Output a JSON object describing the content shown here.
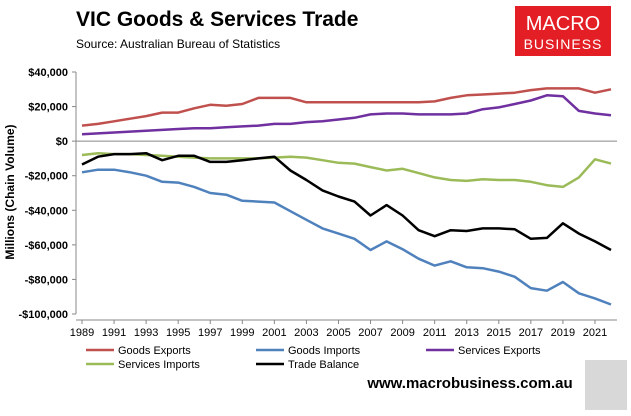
{
  "chart_data": {
    "type": "line",
    "title": "VIC Goods & Services Trade",
    "subtitle": "Source:  Australian Bureau of Statistics",
    "ylabel": "Millions (Chain Volume)",
    "logo": [
      "MACRO",
      "BUSINESS"
    ],
    "footer": "www.macrobusiness.com.au",
    "x": [
      1989,
      1990,
      1991,
      1992,
      1993,
      1994,
      1995,
      1996,
      1997,
      1998,
      1999,
      2000,
      2001,
      2002,
      2003,
      2004,
      2005,
      2006,
      2007,
      2008,
      2009,
      2010,
      2011,
      2012,
      2013,
      2014,
      2015,
      2016,
      2017,
      2018,
      2019,
      2020,
      2021,
      2022
    ],
    "xlim": [
      1989,
      2022
    ],
    "xticks": [
      1989,
      1991,
      1993,
      1995,
      1997,
      1999,
      2001,
      2003,
      2005,
      2007,
      2009,
      2011,
      2013,
      2015,
      2017,
      2019,
      2021
    ],
    "ylim": [
      -100000,
      40000
    ],
    "yticks": [
      {
        "value": -100000,
        "label": "-$100,000"
      },
      {
        "value": -80000,
        "label": "-$80,000"
      },
      {
        "value": -60000,
        "label": "-$60,000"
      },
      {
        "value": -40000,
        "label": "-$40,000"
      },
      {
        "value": -20000,
        "label": "-$20,000"
      },
      {
        "value": 0,
        "label": "$0"
      },
      {
        "value": 20000,
        "label": "$20,000"
      },
      {
        "value": 40000,
        "label": "$40,000"
      }
    ],
    "series": [
      {
        "name": "Goods Exports",
        "color": "#c0504d",
        "values": [
          9000,
          10000,
          11500,
          13000,
          14500,
          16500,
          16500,
          19000,
          21000,
          20500,
          21500,
          25000,
          25000,
          25000,
          22500,
          22500,
          22500,
          22500,
          22500,
          22500,
          22500,
          22500,
          23000,
          25000,
          26500,
          27000,
          27500,
          28000,
          29500,
          30500,
          30500,
          30500,
          28000,
          30000
        ]
      },
      {
        "name": "Goods Imports",
        "color": "#4f81bd",
        "values": [
          -18000,
          -16500,
          -16500,
          -18000,
          -20000,
          -23500,
          -24000,
          -26500,
          -30000,
          -31000,
          -34500,
          -35000,
          -35500,
          -40500,
          -45500,
          -50500,
          -53500,
          -56500,
          -63000,
          -58000,
          -62500,
          -68000,
          -72000,
          -69500,
          -73000,
          -73500,
          -75500,
          -78500,
          -85000,
          -86500,
          -81500,
          -88000,
          -91000,
          -94500
        ]
      },
      {
        "name": "Services Exports",
        "color": "#7030a0",
        "values": [
          4000,
          4500,
          5000,
          5500,
          6000,
          6500,
          7000,
          7500,
          7500,
          8000,
          8500,
          9000,
          10000,
          10000,
          11000,
          11500,
          12500,
          13500,
          15500,
          16000,
          16000,
          15500,
          15500,
          15500,
          16000,
          18500,
          19500,
          21500,
          23500,
          26500,
          26000,
          17500,
          16000,
          15000
        ]
      },
      {
        "name": "Services Imports",
        "color": "#9bbb59",
        "values": [
          -8000,
          -7000,
          -7500,
          -7500,
          -8000,
          -8500,
          -9000,
          -9500,
          -10000,
          -10000,
          -10000,
          -10000,
          -9500,
          -9000,
          -9500,
          -11000,
          -12500,
          -13000,
          -15000,
          -17000,
          -16000,
          -18500,
          -21000,
          -22500,
          -23000,
          -22000,
          -22500,
          -22500,
          -23500,
          -25500,
          -26500,
          -21000,
          -10500,
          -13000
        ]
      },
      {
        "name": "Trade Balance",
        "color": "#000000",
        "values": [
          -13500,
          -9000,
          -7500,
          -7500,
          -7000,
          -11000,
          -8500,
          -8500,
          -12000,
          -12000,
          -11000,
          -10000,
          -9000,
          -17000,
          -22500,
          -28500,
          -32000,
          -35000,
          -43000,
          -37000,
          -43000,
          -51500,
          -55000,
          -51500,
          -52000,
          -50500,
          -50500,
          -51000,
          -56500,
          -56000,
          -47500,
          -53500,
          -58000,
          -63000
        ]
      }
    ]
  }
}
